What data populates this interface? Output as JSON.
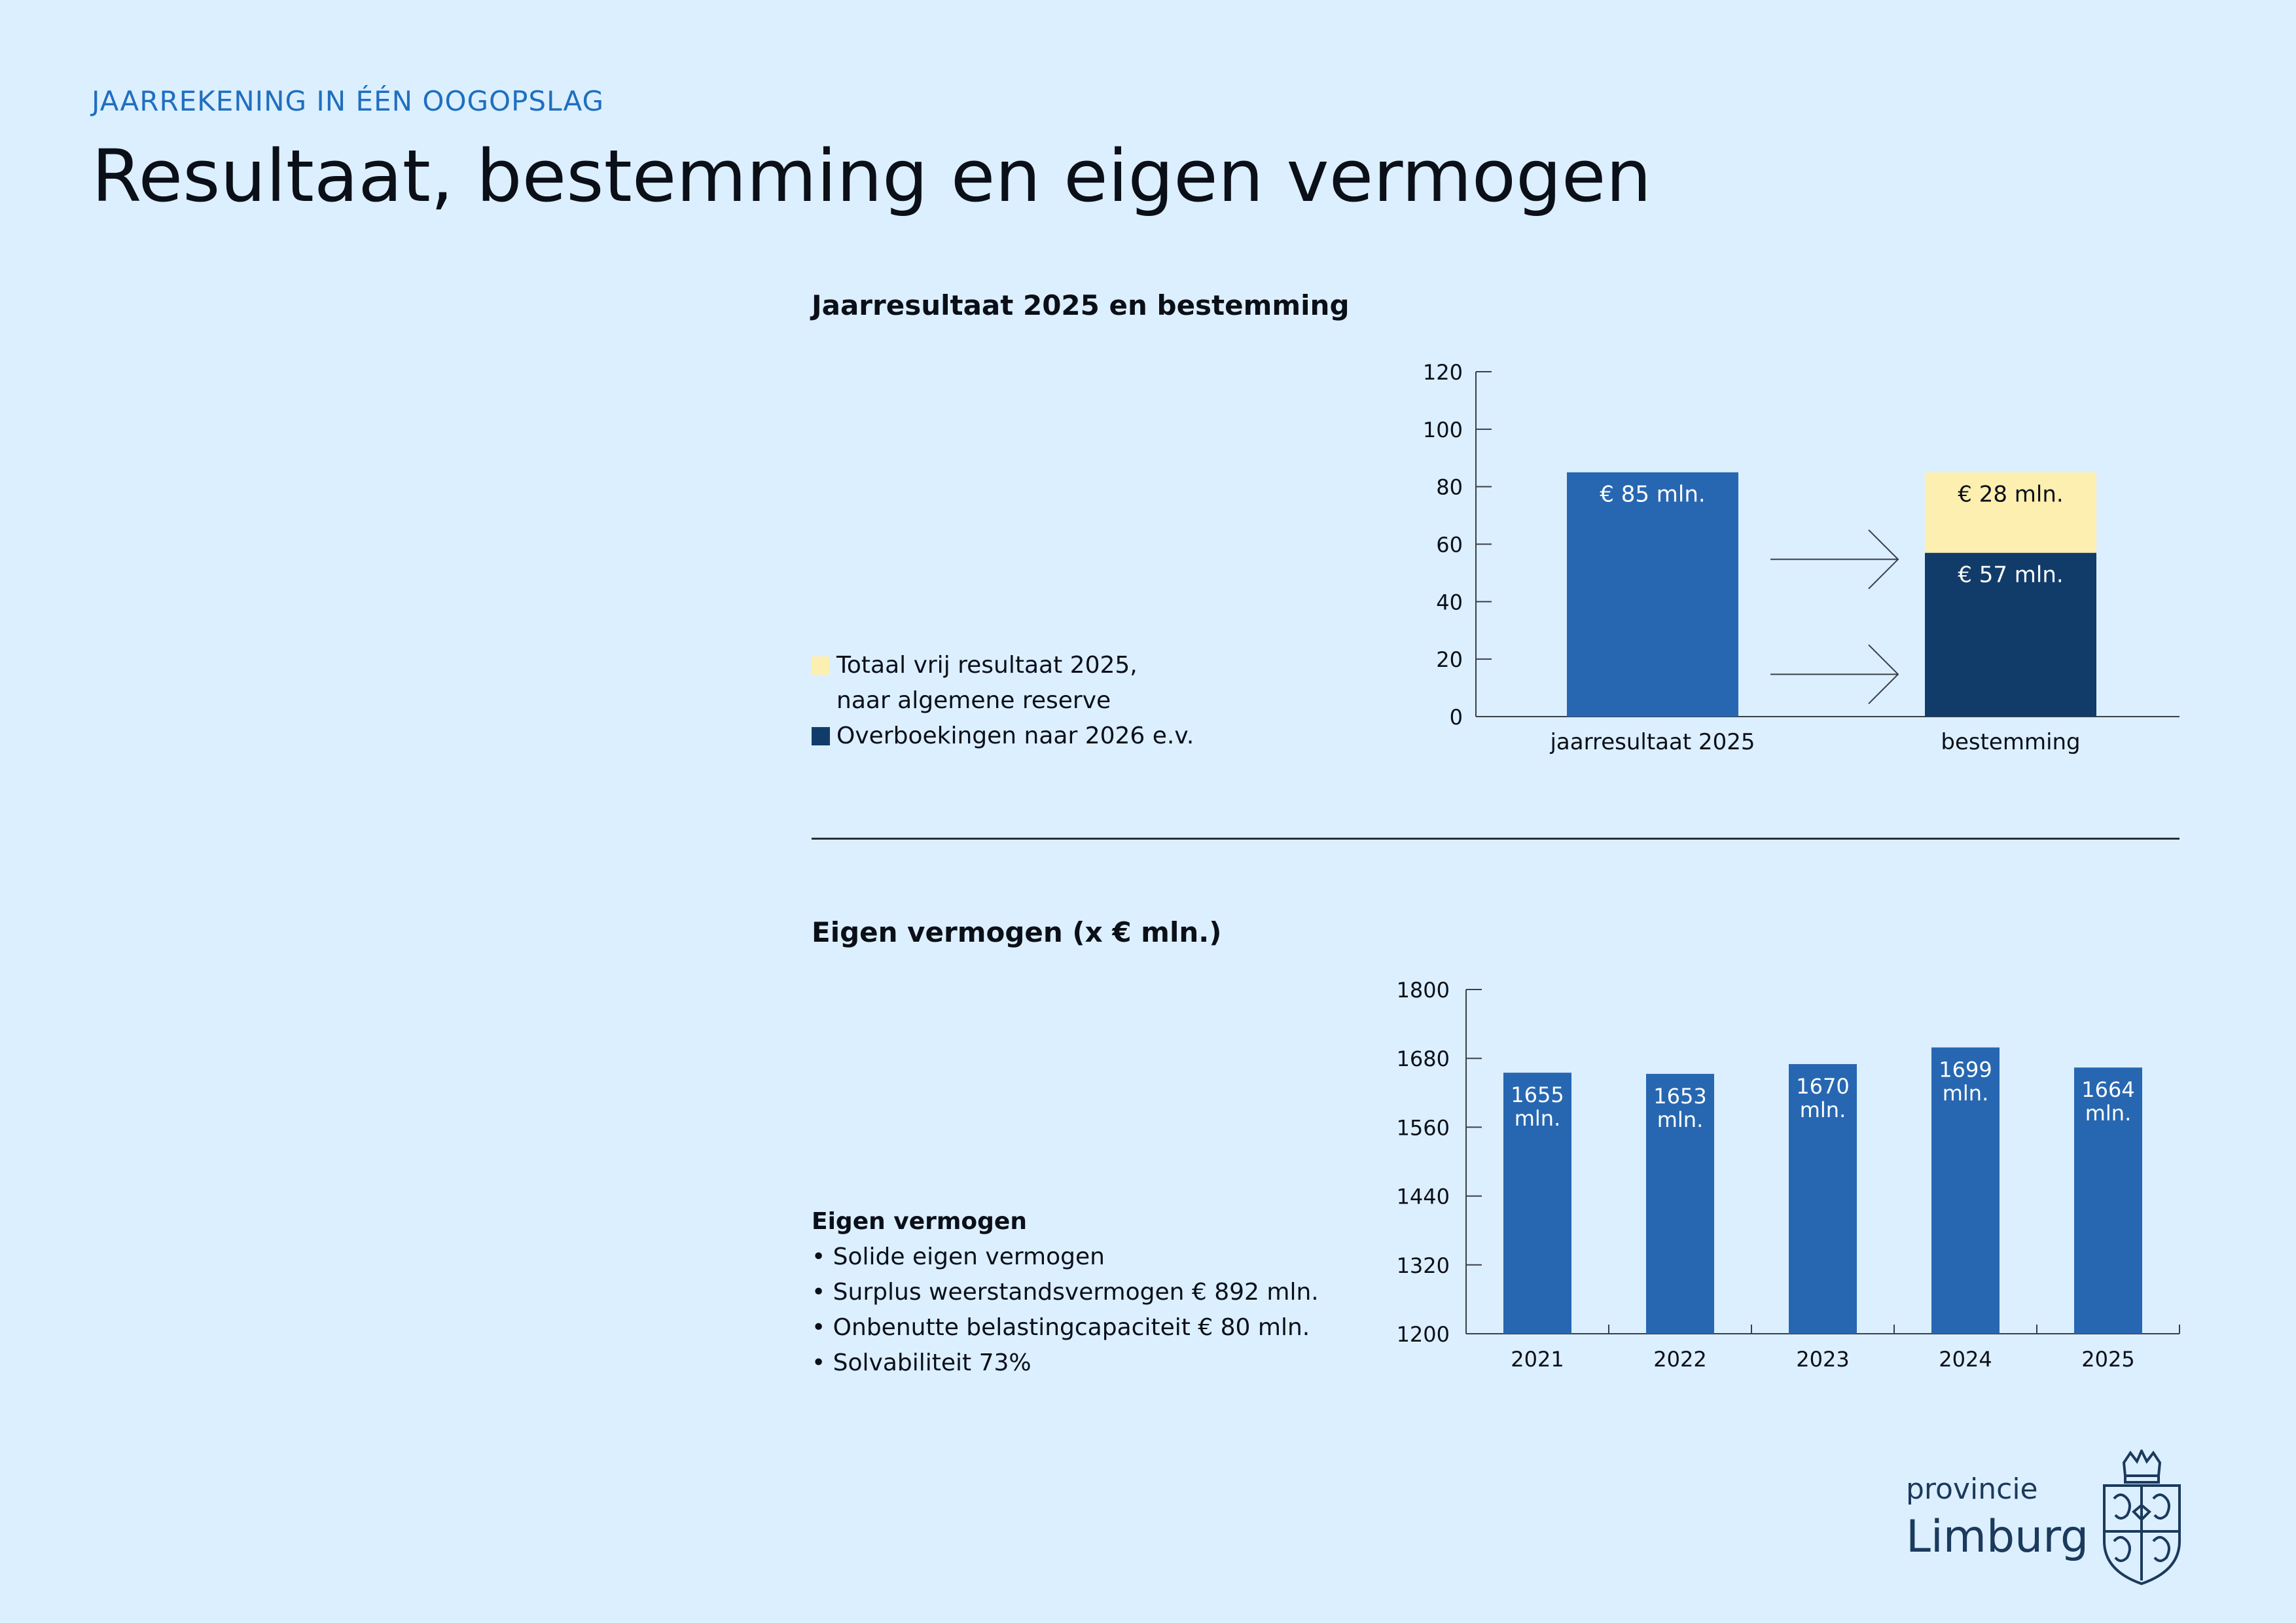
{
  "header": {
    "eyebrow": "JAARREKENING IN ÉÉN OOGOPSLAG",
    "title": "Resultaat, bestemming en eigen vermogen"
  },
  "section1": {
    "title": "Jaarresultaat 2025 en bestemming",
    "legend": [
      {
        "label": "Totaal vrij resultaat 2025,\nnaar algemene reserve",
        "color": "#fdefb0"
      },
      {
        "label": "Overboekingen naar 2026 e.v.",
        "color": "#113c6a"
      }
    ]
  },
  "section2": {
    "title": "Eigen vermogen (x € mln.)",
    "notes_heading": "Eigen vermogen",
    "notes": [
      "• Solide eigen vermogen",
      "• Surplus weerstandsvermogen € 892 mln.",
      "• Onbenutte belastingcapaciteit € 80 mln.",
      "• Solvabiliteit 73%"
    ]
  },
  "logo": {
    "line1": "provincie",
    "line2": "Limburg"
  },
  "colors": {
    "blue": "#2767b1",
    "navy": "#113c6a",
    "yellow": "#fdefb0",
    "axis": "#3a3f4a",
    "background": "#dcefff"
  },
  "chart_data": [
    {
      "type": "bar",
      "title": "Jaarresultaat 2025 en bestemming",
      "categories": [
        "jaarresultaat 2025",
        "bestemming"
      ],
      "series": [
        {
          "name": "jaarresultaat 2025",
          "values": [
            85,
            null
          ],
          "labels": [
            "€ 85 mln.",
            null
          ],
          "color": "#2767b1"
        },
        {
          "name": "Overboekingen naar 2026 e.v.",
          "values": [
            null,
            57
          ],
          "labels": [
            null,
            "€ 57 mln."
          ],
          "color": "#113c6a"
        },
        {
          "name": "Totaal vrij resultaat 2025, naar algemene reserve",
          "values": [
            null,
            28
          ],
          "labels": [
            null,
            "€ 28 mln."
          ],
          "color": "#fdefb0"
        }
      ],
      "stacked": true,
      "yticks": [
        0,
        20,
        40,
        60,
        80,
        100,
        120
      ],
      "ylim": [
        0,
        120
      ],
      "xlabel": "",
      "ylabel": "",
      "annotations": [
        "arrow from jaarresultaat 2025 to bestemming (x2)"
      ]
    },
    {
      "type": "bar",
      "title": "Eigen vermogen (x € mln.)",
      "categories": [
        "2021",
        "2022",
        "2023",
        "2024",
        "2025"
      ],
      "values": [
        1655,
        1653,
        1670,
        1699,
        1664
      ],
      "labels": [
        "1655\nmln.",
        "1653\nmln.",
        "1670\nmln.",
        "1699\nmln.",
        "1664\nmln."
      ],
      "yticks": [
        1200,
        1320,
        1440,
        1560,
        1680,
        1800
      ],
      "ylim": [
        1200,
        1800
      ],
      "xlabel": "",
      "ylabel": ""
    }
  ]
}
